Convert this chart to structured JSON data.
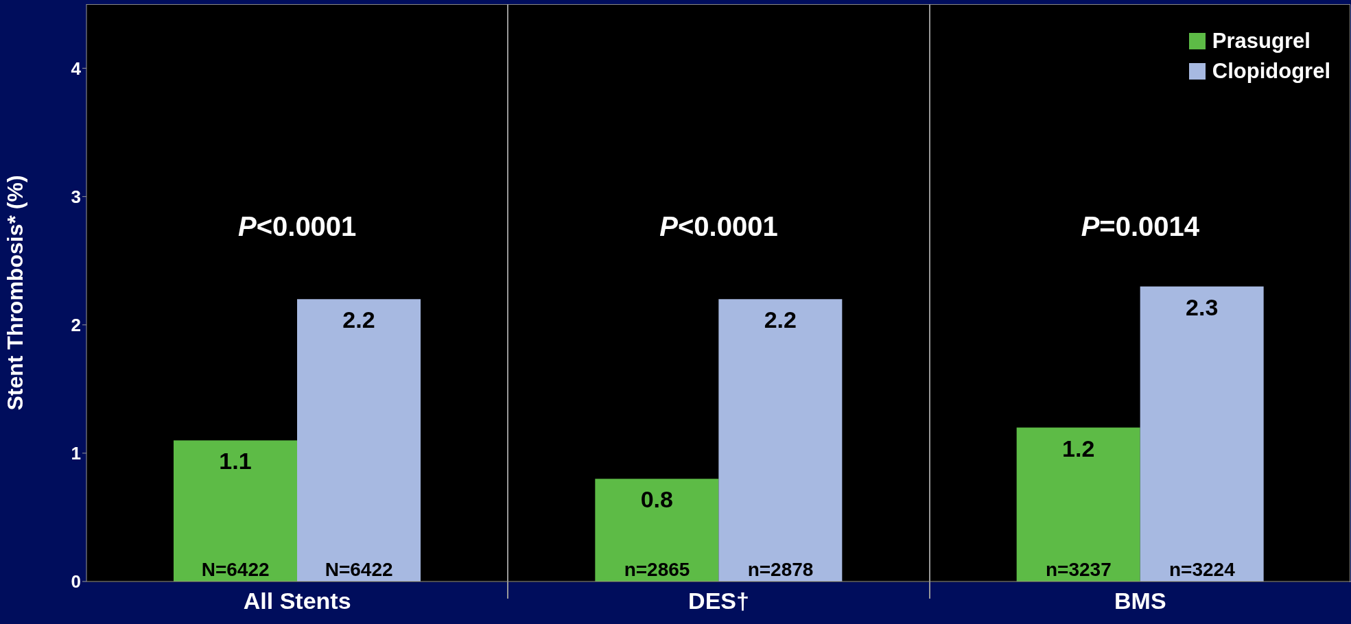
{
  "chart_data": {
    "type": "bar",
    "ylabel": "Stent Thrombosis* (%)",
    "categories": [
      "All Stents",
      "DES†",
      "BMS"
    ],
    "series": [
      {
        "name": "Prasugrel",
        "color": "#5dbb46",
        "values": [
          1.1,
          0.8,
          1.2
        ]
      },
      {
        "name": "Clopidogrel",
        "color": "#a7b9e1",
        "values": [
          2.2,
          2.2,
          2.3
        ]
      }
    ],
    "ylim": [
      0,
      4.5
    ],
    "yticks": [
      0,
      1,
      2,
      3,
      4
    ],
    "grid": false,
    "legend": "top right",
    "data_labels": true,
    "annotations": [
      "P<0.0001",
      "P<0.0001",
      "P=0.0014",
      {
        "text": "N=6422",
        "x": "All Stents",
        "y": 0
      },
      {
        "text": "N=6422",
        "x": "All Stents",
        "y": 0
      },
      {
        "text": "n=2865",
        "x": "DES†",
        "y": 0
      },
      {
        "text": "n=2878",
        "x": "DES†",
        "y": 0
      },
      {
        "text": "n=3237",
        "x": "BMS",
        "y": 0
      },
      {
        "text": "n=3224",
        "x": "BMS",
        "y": 0
      }
    ]
  }
}
